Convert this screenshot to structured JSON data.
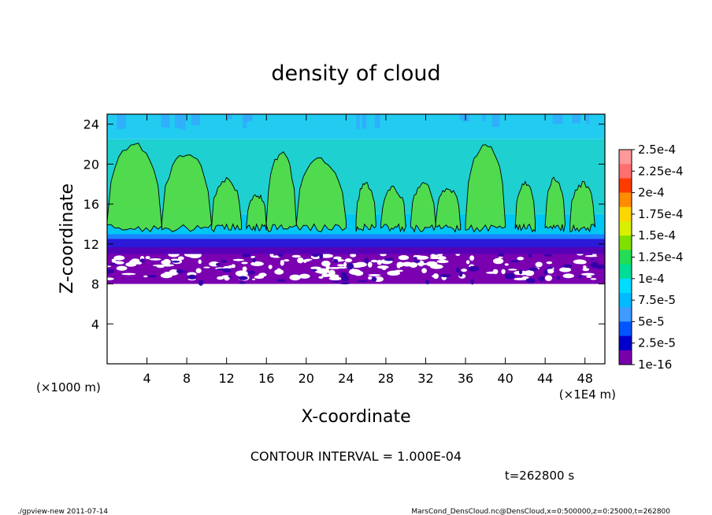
{
  "chart_data": {
    "type": "heatmap",
    "title": "density of cloud",
    "xlabel": "X-coordinate",
    "ylabel": "Z-coordinate",
    "x_unit": "(×1E4 m)",
    "y_unit": "(×1000 m)",
    "xlim": [
      0,
      50
    ],
    "ylim": [
      0,
      25
    ],
    "x_ticks": [
      "4",
      "8",
      "12",
      "16",
      "20",
      "24",
      "28",
      "32",
      "36",
      "40",
      "44",
      "48"
    ],
    "y_ticks": [
      "4",
      "8",
      "12",
      "16",
      "20",
      "24"
    ],
    "colorbar": {
      "labels": [
        "2.5e-4",
        "2.25e-4",
        "2e-4",
        "1.75e-4",
        "1.5e-4",
        "1.25e-4",
        "1e-4",
        "7.5e-5",
        "5e-5",
        "2.5e-5",
        "1e-16"
      ],
      "colors": [
        "#ff9999",
        "#ff6f6f",
        "#ff3c00",
        "#ff8c00",
        "#ffd700",
        "#d8f000",
        "#7fe000",
        "#22dd55",
        "#00dd99",
        "#00ddff",
        "#00bbff",
        "#3f9bff",
        "#0055ff",
        "#0000cc",
        "#7700aa"
      ]
    },
    "field_bands": [
      {
        "z_min": 8,
        "z_max": 11,
        "level": "1e-16",
        "pattern": "patchy"
      },
      {
        "z_min": 11,
        "z_max": 12.5,
        "level": "2.5e-5",
        "pattern": "layer"
      },
      {
        "z_min": 12.5,
        "z_max": 15,
        "level": "7.5e-5",
        "pattern": "layer"
      },
      {
        "z_min": 15,
        "z_max": 22.5,
        "level": "1e-4",
        "pattern": "cells"
      },
      {
        "z_min": 22.5,
        "z_max": 25,
        "level": "7.5e-5",
        "pattern": "layer"
      }
    ],
    "cloud_cells": [
      {
        "x_start": 0.0,
        "x_end": 5.5,
        "z_top": 22.0
      },
      {
        "x_start": 5.5,
        "x_end": 10.5,
        "z_top": 21.0
      },
      {
        "x_start": 10.5,
        "x_end": 13.5,
        "z_top": 18.5
      },
      {
        "x_start": 14.0,
        "x_end": 16.0,
        "z_top": 17.0
      },
      {
        "x_start": 16.0,
        "x_end": 19.0,
        "z_top": 21.0
      },
      {
        "x_start": 19.0,
        "x_end": 24.0,
        "z_top": 20.5
      },
      {
        "x_start": 25.0,
        "x_end": 27.0,
        "z_top": 18.0
      },
      {
        "x_start": 27.5,
        "x_end": 30.0,
        "z_top": 17.5
      },
      {
        "x_start": 30.5,
        "x_end": 33.0,
        "z_top": 18.0
      },
      {
        "x_start": 33.0,
        "x_end": 35.5,
        "z_top": 17.5
      },
      {
        "x_start": 36.0,
        "x_end": 40.0,
        "z_top": 22.0
      },
      {
        "x_start": 41.0,
        "x_end": 43.0,
        "z_top": 18.0
      },
      {
        "x_start": 44.0,
        "x_end": 46.0,
        "z_top": 18.5
      },
      {
        "x_start": 46.5,
        "x_end": 49.0,
        "z_top": 18.0
      }
    ],
    "contour_level": "1e-4"
  },
  "contour_interval_text": "CONTOUR INTERVAL = 1.000E-04",
  "time_label": "t=262800 s",
  "footer": {
    "left": "./gpview-new 2011-07-14",
    "right": "MarsCond_DensCloud.nc@DensCloud,x=0:500000,z=0:25000,t=262800"
  }
}
